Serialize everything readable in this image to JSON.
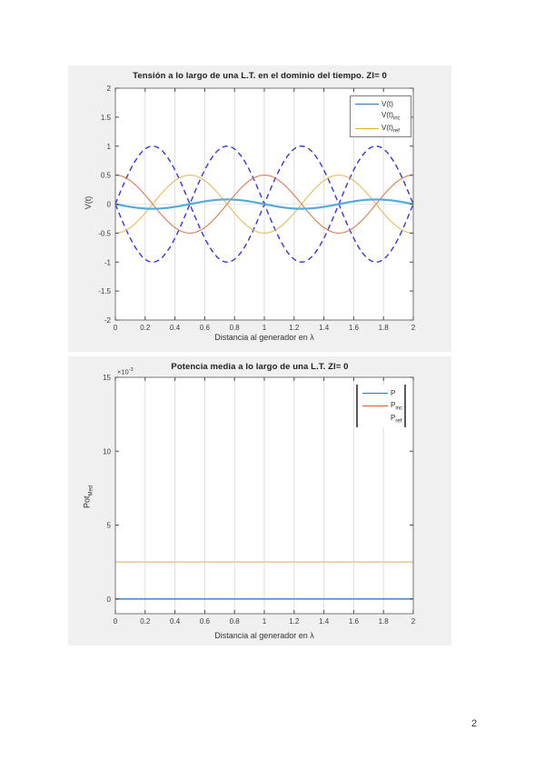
{
  "page": {
    "number": "2"
  },
  "chart_data": [
    {
      "type": "line",
      "title": "Tensión a lo largo de una L.T. en el dominio del tiempo. Zl= 0",
      "xlabel": "Distancia al generador en λ",
      "ylabel": "V(t)",
      "xlim": [
        0,
        2
      ],
      "ylim": [
        -2,
        2
      ],
      "xticks": [
        0,
        0.2,
        0.4,
        0.6,
        0.8,
        1,
        1.2,
        1.4,
        1.6,
        1.8,
        2
      ],
      "xtick_labels": [
        "0",
        "0.2",
        "0.4",
        "0.6",
        "0.8",
        "1",
        "1.2",
        "1.4",
        "1.6",
        "1.8",
        "2"
      ],
      "yticks": [
        -2,
        -1.5,
        -1,
        -0.5,
        0,
        0.5,
        1,
        1.5,
        2
      ],
      "ytick_labels": [
        "-2",
        "-1.5",
        "-1",
        "-0.5",
        "0",
        "0.5",
        "1",
        "1.5",
        "2"
      ],
      "grid": "vertical-at-xticks",
      "zero_line": true,
      "legend_position": "northeast",
      "legend": [
        {
          "label": "V(t)",
          "sub": "",
          "color": "#2277c8",
          "visible": true
        },
        {
          "label": "V(t)",
          "sub": "inc",
          "color": "#d95319",
          "visible": false
        },
        {
          "label": "V(t)",
          "sub": "ref",
          "color": "#edb120",
          "visible": true
        }
      ],
      "series": [
        {
          "name": "envelope-upper",
          "desc": "+|sin(2*pi*x)| standing-wave envelope",
          "fn": "abs_sin",
          "amp": 1,
          "freq": 1,
          "color": "#3636e0",
          "width": 1.4,
          "dash": "6 4"
        },
        {
          "name": "envelope-lower",
          "desc": "-|sin(2*pi*x)| standing-wave envelope",
          "fn": "abs_sin",
          "amp": -1,
          "freq": 1,
          "color": "#3636e0",
          "width": 1.4,
          "dash": "6 4"
        },
        {
          "name": "v-incident",
          "desc": "0.5*cos(2*pi*x)",
          "fn": "cos",
          "amp": 0.5,
          "freq": 1,
          "color": "#db7b50",
          "width": 1.1
        },
        {
          "name": "v-reflected",
          "desc": "-0.5*cos(2*pi*x)",
          "fn": "cos",
          "amp": -0.5,
          "freq": 1,
          "color": "#eaba55",
          "width": 1.1
        },
        {
          "name": "v-total",
          "desc": "-0.08*sin(2*pi*x) instantaneous total voltage",
          "fn": "sin",
          "amp": -0.08,
          "freq": 1,
          "color": "#55abdb",
          "width": 2.2
        }
      ]
    },
    {
      "type": "line",
      "title": "Potencia media a lo largo de una L.T. Zl= 0",
      "xlabel": "Distancia al generador en λ",
      "ylabel_main": "Pot",
      "ylabel_sub": "Med",
      "y_multiplier_base": "×10",
      "y_multiplier_exp": "-3",
      "y_units_note": "y values expressed in units of 10^-3",
      "xlim": [
        0,
        2
      ],
      "ylim": [
        -1,
        15
      ],
      "xticks": [
        0,
        0.2,
        0.4,
        0.6,
        0.8,
        1,
        1.2,
        1.4,
        1.6,
        1.8,
        2
      ],
      "xtick_labels": [
        "0",
        "0.2",
        "0.4",
        "0.6",
        "0.8",
        "1",
        "1.2",
        "1.4",
        "1.6",
        "1.8",
        "2"
      ],
      "yticks": [
        0,
        5,
        10,
        15
      ],
      "ytick_labels": [
        "0",
        "5",
        "10",
        "15"
      ],
      "grid": "vertical-at-xticks",
      "zero_line": false,
      "legend_position": "northeast",
      "legend": [
        {
          "label": "P",
          "sub": "",
          "color": "#2277c8",
          "visible": true
        },
        {
          "label": "P",
          "sub": "inc",
          "color": "#e4571e",
          "visible": true
        },
        {
          "label": "P",
          "sub": "ref",
          "color": "#edb120",
          "visible": false
        }
      ],
      "series": [
        {
          "name": "p-incident",
          "desc": "P_inc = 2.5e-3 (constant, hidden under P_ref)",
          "fn": "const",
          "value": 2.5,
          "color": "#e8762a",
          "width": 1.6
        },
        {
          "name": "p-reflected",
          "desc": "P_ref = 2.5e-3 (constant, drawn over P_inc)",
          "fn": "const",
          "value": 2.5,
          "color": "#ead9a2",
          "width": 1.6
        },
        {
          "name": "p-total",
          "desc": "P = 0 (constant)",
          "fn": "const",
          "value": 0,
          "color": "#4a90d8",
          "width": 1.7
        }
      ]
    }
  ]
}
